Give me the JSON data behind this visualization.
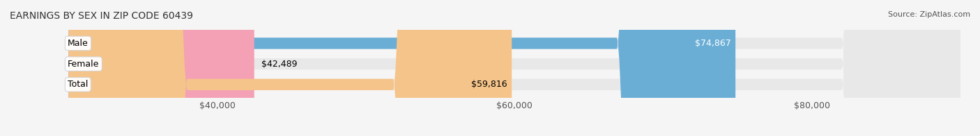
{
  "title": "EARNINGS BY SEX IN ZIP CODE 60439",
  "source": "Source: ZipAtlas.com",
  "categories": [
    "Male",
    "Female",
    "Total"
  ],
  "values": [
    74867,
    42489,
    59816
  ],
  "bar_colors": [
    "#6aaed6",
    "#f4a0b5",
    "#f5c48a"
  ],
  "label_colors": [
    "white",
    "black",
    "black"
  ],
  "value_labels": [
    "$74,867",
    "$42,489",
    "$59,816"
  ],
  "x_min": 30000,
  "x_max": 90000,
  "x_ticks": [
    40000,
    60000,
    80000
  ],
  "x_tick_labels": [
    "$40,000",
    "$60,000",
    "$80,000"
  ],
  "background_color": "#f5f5f5",
  "bar_background_color": "#e8e8e8",
  "title_fontsize": 10,
  "source_fontsize": 8,
  "label_fontsize": 9,
  "value_fontsize": 9,
  "tick_fontsize": 9,
  "bar_height": 0.55
}
